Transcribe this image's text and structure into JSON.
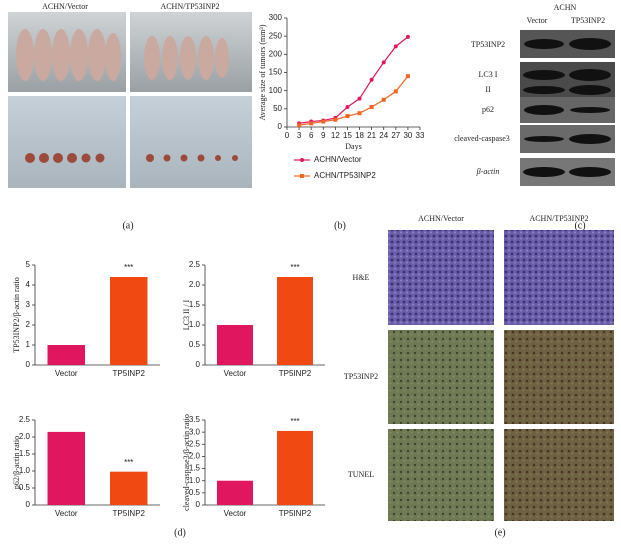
{
  "panels": {
    "a": {
      "caption": "(a)",
      "columns": [
        "ACHN/Vector",
        "ACHN/TP53INP2"
      ]
    },
    "b": {
      "caption": "(b)"
    },
    "c": {
      "caption": "(c)",
      "group": "ACHN",
      "columns": [
        "Vector",
        "TP53INP2"
      ],
      "rows": [
        "TP53INP2",
        "LC3 I",
        "II",
        "p62",
        "cleaved-caspase3",
        "β-actin"
      ]
    },
    "d": {
      "caption": "(d)"
    },
    "e": {
      "caption": "(e)",
      "columns": [
        "ACHN/Vector",
        "ACHN/TP53INP2"
      ],
      "rows": [
        "H&E",
        "TP53INP2",
        "TUNEL"
      ]
    }
  },
  "chart_data": [
    {
      "type": "line",
      "x_label": "Days",
      "y_label": "Average size of tumors (mm³)",
      "x": [
        3,
        6,
        9,
        12,
        15,
        18,
        21,
        24,
        27,
        30
      ],
      "xlim": [
        0,
        33
      ],
      "xticks": [
        0,
        3,
        6,
        9,
        12,
        15,
        18,
        21,
        24,
        27,
        30,
        33
      ],
      "ylim": [
        0,
        300
      ],
      "yticks": [
        0,
        50,
        100,
        150,
        200,
        250,
        300
      ],
      "series": [
        {
          "name": "ACHN/Vector",
          "color": "#e0175f",
          "values": [
            10,
            15,
            18,
            25,
            55,
            78,
            130,
            178,
            222,
            248
          ]
        },
        {
          "name": "ACHN/TP53INP2",
          "color": "#f26522",
          "values": [
            5,
            10,
            15,
            20,
            30,
            38,
            55,
            75,
            98,
            140
          ]
        }
      ]
    },
    {
      "type": "bar",
      "y_label": "TP53INP2/β-actin ratio",
      "categories": [
        "Vector",
        "TP5INP2"
      ],
      "colors": [
        "#e0175f",
        "#f04a12"
      ],
      "values": [
        1.0,
        4.4
      ],
      "annotation": "***",
      "ylim": [
        0,
        5
      ],
      "yticks": [
        0,
        1,
        2,
        3,
        4,
        5
      ]
    },
    {
      "type": "bar",
      "y_label": "LC3 II / I",
      "categories": [
        "Vector",
        "TP5INP2"
      ],
      "colors": [
        "#e0175f",
        "#f04a12"
      ],
      "values": [
        1.0,
        2.2
      ],
      "annotation": "***",
      "ylim": [
        0,
        2.5
      ],
      "yticks": [
        0,
        0.5,
        {
          "value": 1,
          "label": "1.0"
        },
        1.5,
        {
          "value": 2,
          "label": "2.0"
        },
        2.5
      ]
    },
    {
      "type": "bar",
      "y_label": "p62/β-actin ratio",
      "categories": [
        "Vector",
        "TP5INP2"
      ],
      "colors": [
        "#e0175f",
        "#f04a12"
      ],
      "values": [
        2.15,
        0.98
      ],
      "annotation": "***",
      "ylim": [
        0,
        2.5
      ],
      "yticks": [
        0,
        0.5,
        {
          "value": 1,
          "label": "1.0"
        },
        1.5,
        {
          "value": 2,
          "label": "2.0"
        },
        2.5
      ]
    },
    {
      "type": "bar",
      "y_label": "cleaved-caspase3/β-actin ratio",
      "categories": [
        "Vector",
        "TP5INP2"
      ],
      "colors": [
        "#e0175f",
        "#f04a12"
      ],
      "values": [
        1.0,
        3.05
      ],
      "annotation": "***",
      "ylim": [
        0,
        3.5
      ],
      "yticks": [
        0,
        0.5,
        {
          "value": 1,
          "label": "1.0"
        },
        1.5,
        {
          "value": 2,
          "label": "2.0"
        },
        2.5,
        {
          "value": 3,
          "label": "3.0"
        },
        3.5
      ]
    }
  ]
}
